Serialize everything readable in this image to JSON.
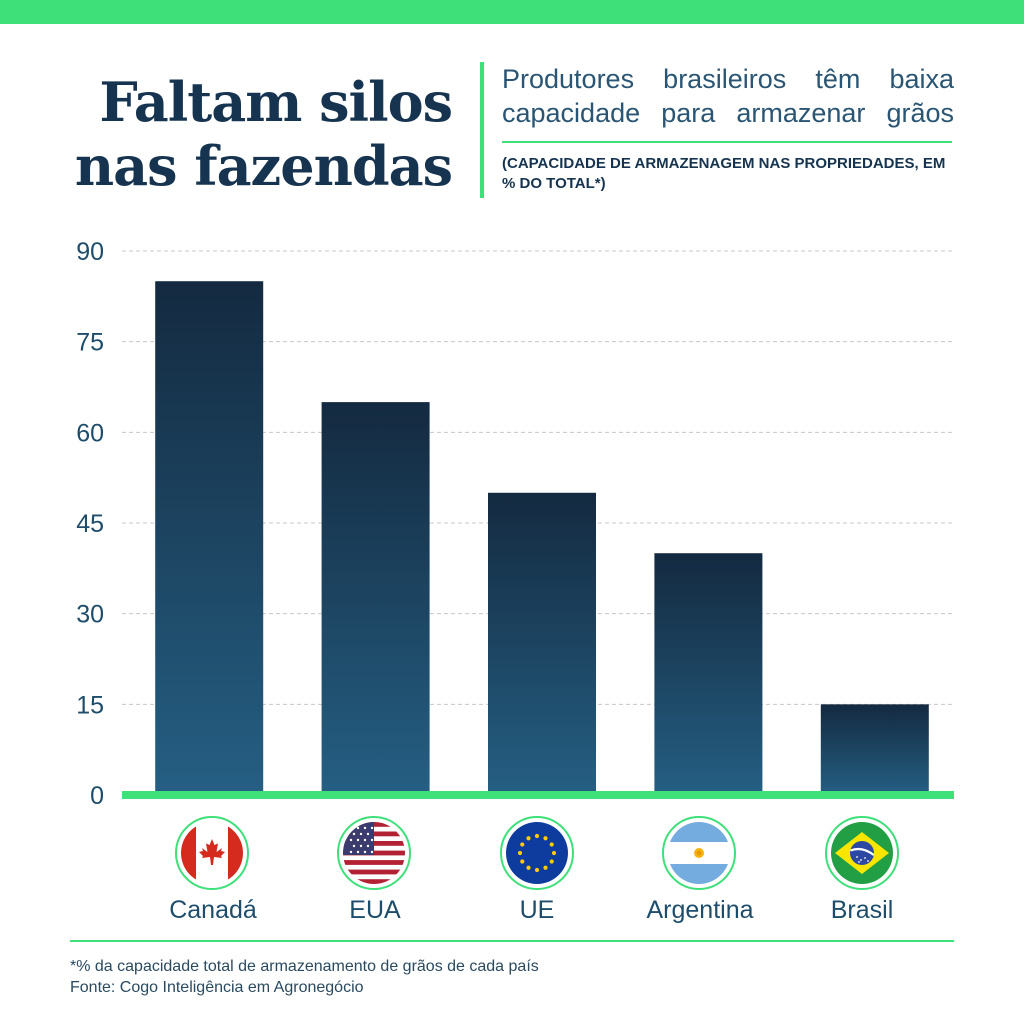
{
  "header": {
    "title_line1": "Faltam silos",
    "title_line2": "nas fazendas",
    "subtitle": "Produtores brasileiros têm baixa capacidade para armazenar grãos",
    "note": "(CAPACIDADE DE ARMAZENAGEM NAS PROPRIEDADES, EM % DO TOTAL*)"
  },
  "chart_data": {
    "type": "bar",
    "categories": [
      "Canadá",
      "EUA",
      "UE",
      "Argentina",
      "Brasil"
    ],
    "values": [
      85,
      65,
      50,
      40,
      15
    ],
    "ylim": [
      0,
      90
    ],
    "yticks": [
      0,
      15,
      30,
      45,
      60,
      75,
      90
    ],
    "grid": true,
    "colors": {
      "bar_top": "#142a40",
      "bar_bottom": "#255f83",
      "baseline": "#3ee07a",
      "grid": "#c8c8c8",
      "tick_text": "#1d4d6b"
    }
  },
  "flags": [
    "canada-flag-icon",
    "usa-flag-icon",
    "eu-flag-icon",
    "argentina-flag-icon",
    "brazil-flag-icon"
  ],
  "footer": {
    "footnote": "*% da capacidade total de armazenamento de grãos de cada país",
    "source": "Fonte: Cogo Inteligência em Agronegócio"
  },
  "colors": {
    "accent": "#3ee07a",
    "title": "#16344f",
    "subtitle": "#2a5573"
  }
}
